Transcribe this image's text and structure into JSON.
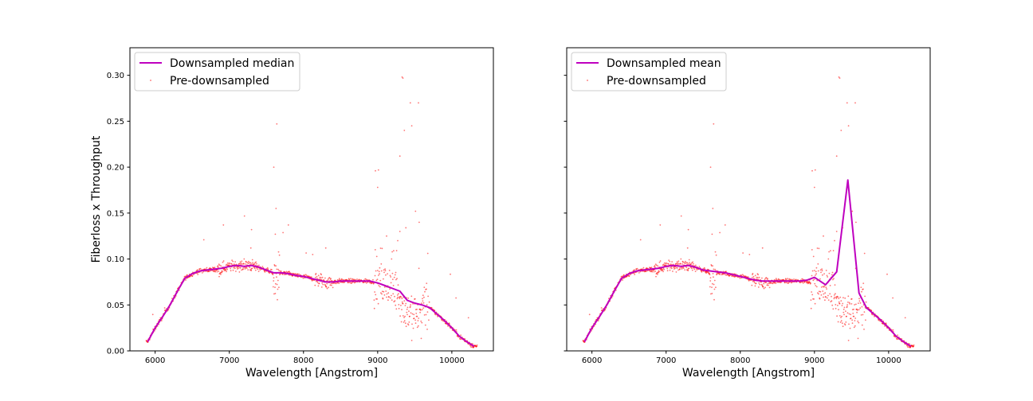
{
  "chart_data": [
    {
      "type": "line",
      "title": "",
      "xlabel": "Wavelength [Angstrom]",
      "ylabel": "Fiberloss x Throughput",
      "xlim": [
        5660,
        10560
      ],
      "ylim": [
        0.0,
        0.33
      ],
      "xticks": [
        6000,
        7000,
        8000,
        9000,
        10000
      ],
      "xtick_labels": [
        "6000",
        "7000",
        "8000",
        "9000",
        "10000"
      ],
      "yticks": [
        0.0,
        0.05,
        0.1,
        0.15,
        0.2,
        0.25,
        0.3
      ],
      "ytick_labels": [
        "0.00",
        "0.05",
        "0.10",
        "0.15",
        "0.20",
        "0.25",
        "0.30"
      ],
      "grid": false,
      "legend": "upper-left",
      "series": [
        {
          "name": "Downsampled median",
          "kind": "line",
          "color": "#bf00bf",
          "x": [
            5900,
            6000,
            6100,
            6200,
            6300,
            6400,
            6500,
            6600,
            6700,
            6800,
            6900,
            7000,
            7100,
            7200,
            7300,
            7400,
            7500,
            7600,
            7700,
            7800,
            7900,
            8000,
            8100,
            8200,
            8300,
            8400,
            8500,
            8600,
            8700,
            8800,
            8900,
            9000,
            9100,
            9200,
            9300,
            9400,
            9500,
            9600,
            9700,
            9800,
            9900,
            10000,
            10100,
            10200,
            10300
          ],
          "y": [
            0.01,
            0.025,
            0.037,
            0.05,
            0.065,
            0.079,
            0.084,
            0.087,
            0.088,
            0.089,
            0.09,
            0.092,
            0.093,
            0.092,
            0.093,
            0.091,
            0.088,
            0.085,
            0.085,
            0.084,
            0.082,
            0.081,
            0.079,
            0.077,
            0.075,
            0.075,
            0.076,
            0.076,
            0.076,
            0.076,
            0.076,
            0.074,
            0.071,
            0.068,
            0.065,
            0.055,
            0.052,
            0.05,
            0.047,
            0.04,
            0.033,
            0.025,
            0.016,
            0.01,
            0.005
          ]
        },
        {
          "name": "Pre-downsampled",
          "kind": "scatter",
          "color": "#ff0000"
        }
      ]
    },
    {
      "type": "line",
      "title": "",
      "xlabel": "Wavelength [Angstrom]",
      "ylabel": "",
      "xlim": [
        5660,
        10560
      ],
      "ylim": [
        0.0,
        0.33
      ],
      "xticks": [
        6000,
        7000,
        8000,
        9000,
        10000
      ],
      "xtick_labels": [
        "6000",
        "7000",
        "8000",
        "9000",
        "10000"
      ],
      "yticks": [
        0.0,
        0.05,
        0.1,
        0.15,
        0.2,
        0.25,
        0.3
      ],
      "ytick_labels": [],
      "grid": false,
      "legend": "upper-left",
      "series": [
        {
          "name": "Downsampled mean",
          "kind": "line",
          "color": "#bf00bf",
          "x": [
            5900,
            6000,
            6100,
            6200,
            6300,
            6400,
            6500,
            6600,
            6700,
            6800,
            6900,
            7000,
            7100,
            7200,
            7300,
            7400,
            7500,
            7600,
            7700,
            7800,
            7900,
            8000,
            8100,
            8200,
            8300,
            8400,
            8500,
            8600,
            8700,
            8800,
            8900,
            9000,
            9150,
            9300,
            9450,
            9600,
            9700,
            9800,
            9900,
            10000,
            10100,
            10200,
            10300
          ],
          "y": [
            0.01,
            0.025,
            0.037,
            0.05,
            0.065,
            0.079,
            0.084,
            0.087,
            0.088,
            0.089,
            0.09,
            0.092,
            0.093,
            0.092,
            0.093,
            0.091,
            0.088,
            0.087,
            0.086,
            0.085,
            0.083,
            0.081,
            0.079,
            0.077,
            0.076,
            0.076,
            0.076,
            0.076,
            0.076,
            0.076,
            0.077,
            0.08,
            0.072,
            0.086,
            0.186,
            0.063,
            0.047,
            0.04,
            0.033,
            0.025,
            0.016,
            0.01,
            0.005
          ]
        },
        {
          "name": "Pre-downsampled",
          "kind": "scatter",
          "color": "#ff0000"
        }
      ]
    }
  ]
}
